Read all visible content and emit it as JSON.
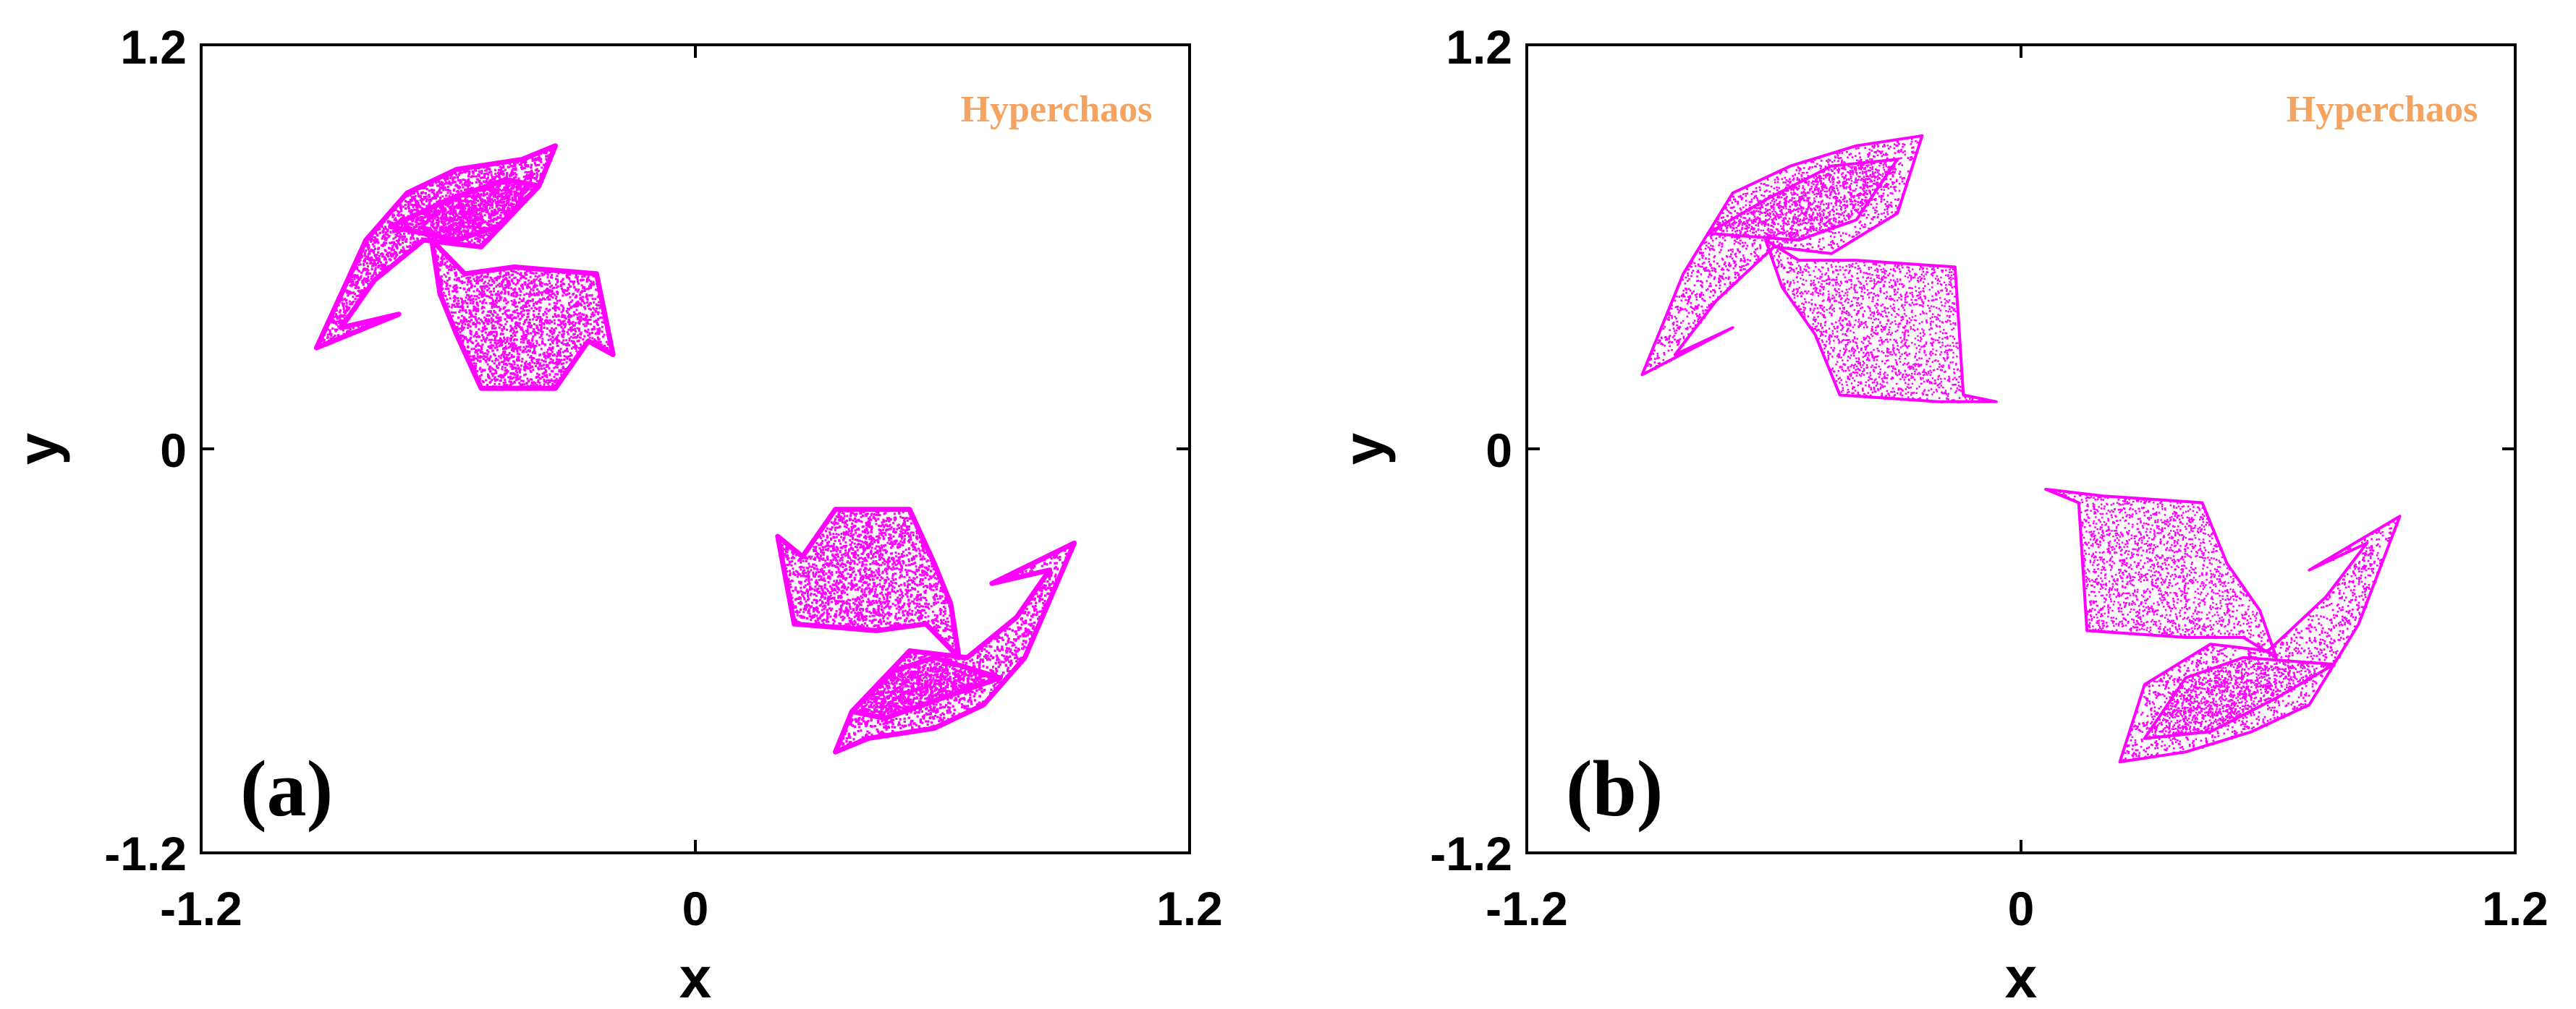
{
  "chart_data": [
    {
      "type": "scatter",
      "panel_label": "(a)",
      "annotation": "Hyperchaos",
      "annotation_color": "#f4a460",
      "point_color": "#ff00ff",
      "xlabel": "x",
      "ylabel": "y",
      "xlim": [
        -1.2,
        1.2
      ],
      "ylim": [
        -1.2,
        1.2
      ],
      "xticks": [
        "-1.2",
        "0",
        "1.2"
      ],
      "yticks": [
        "-1.2",
        "0",
        "1.2"
      ],
      "grid": false,
      "attractor_regions": [
        {
          "name": "upper-left",
          "polygons": [
            [
              [
                -0.92,
                0.3
              ],
              [
                -0.8,
                0.62
              ],
              [
                -0.7,
                0.76
              ],
              [
                -0.58,
                0.83
              ],
              [
                -0.42,
                0.86
              ],
              [
                -0.34,
                0.9
              ],
              [
                -0.38,
                0.78
              ],
              [
                -0.52,
                0.6
              ],
              [
                -0.66,
                0.62
              ],
              [
                -0.78,
                0.5
              ],
              [
                -0.86,
                0.36
              ],
              [
                -0.72,
                0.4
              ]
            ],
            [
              [
                -0.64,
                0.62
              ],
              [
                -0.56,
                0.52
              ],
              [
                -0.44,
                0.54
              ],
              [
                -0.24,
                0.52
              ],
              [
                -0.2,
                0.28
              ],
              [
                -0.26,
                0.32
              ],
              [
                -0.34,
                0.18
              ],
              [
                -0.52,
                0.18
              ],
              [
                -0.58,
                0.34
              ],
              [
                -0.62,
                0.46
              ]
            ],
            [
              [
                -0.74,
                0.66
              ],
              [
                -0.6,
                0.74
              ],
              [
                -0.46,
                0.8
              ],
              [
                -0.38,
                0.78
              ],
              [
                -0.48,
                0.66
              ],
              [
                -0.58,
                0.62
              ]
            ]
          ]
        },
        {
          "name": "lower-right",
          "polygons": [
            [
              [
                0.92,
                -0.28
              ],
              [
                0.8,
                -0.62
              ],
              [
                0.7,
                -0.76
              ],
              [
                0.58,
                -0.83
              ],
              [
                0.42,
                -0.86
              ],
              [
                0.34,
                -0.9
              ],
              [
                0.38,
                -0.78
              ],
              [
                0.52,
                -0.6
              ],
              [
                0.66,
                -0.62
              ],
              [
                0.78,
                -0.5
              ],
              [
                0.86,
                -0.36
              ],
              [
                0.72,
                -0.4
              ]
            ],
            [
              [
                0.64,
                -0.62
              ],
              [
                0.56,
                -0.52
              ],
              [
                0.44,
                -0.54
              ],
              [
                0.24,
                -0.52
              ],
              [
                0.2,
                -0.26
              ],
              [
                0.26,
                -0.32
              ],
              [
                0.34,
                -0.18
              ],
              [
                0.52,
                -0.18
              ],
              [
                0.58,
                -0.34
              ],
              [
                0.62,
                -0.46
              ]
            ],
            [
              [
                0.74,
                -0.68
              ],
              [
                0.6,
                -0.74
              ],
              [
                0.46,
                -0.8
              ],
              [
                0.38,
                -0.78
              ],
              [
                0.48,
                -0.66
              ],
              [
                0.58,
                -0.62
              ]
            ]
          ]
        }
      ]
    },
    {
      "type": "scatter",
      "panel_label": "(b)",
      "annotation": "Hyperchaos",
      "annotation_color": "#f4a460",
      "point_color": "#ff00ff",
      "xlabel": "x",
      "ylabel": "y",
      "xlim": [
        -1.2,
        1.2
      ],
      "ylim": [
        -1.2,
        1.2
      ],
      "xticks": [
        "-1.2",
        "0",
        "1.2"
      ],
      "yticks": [
        "-1.2",
        "0",
        "1.2"
      ],
      "grid": false,
      "attractor_regions": [
        {
          "name": "upper-left",
          "polygons": [
            [
              [
                -0.92,
                0.22
              ],
              [
                -0.82,
                0.52
              ],
              [
                -0.7,
                0.76
              ],
              [
                -0.56,
                0.84
              ],
              [
                -0.4,
                0.9
              ],
              [
                -0.24,
                0.93
              ],
              [
                -0.3,
                0.7
              ],
              [
                -0.46,
                0.58
              ],
              [
                -0.6,
                0.6
              ],
              [
                -0.74,
                0.44
              ],
              [
                -0.84,
                0.28
              ],
              [
                -0.7,
                0.36
              ]
            ],
            [
              [
                -0.62,
                0.62
              ],
              [
                -0.54,
                0.56
              ],
              [
                -0.4,
                0.56
              ],
              [
                -0.16,
                0.54
              ],
              [
                -0.14,
                0.16
              ],
              [
                -0.06,
                0.14
              ],
              [
                -0.2,
                0.14
              ],
              [
                -0.44,
                0.16
              ],
              [
                -0.5,
                0.34
              ],
              [
                -0.58,
                0.48
              ]
            ],
            [
              [
                -0.76,
                0.64
              ],
              [
                -0.62,
                0.74
              ],
              [
                -0.46,
                0.84
              ],
              [
                -0.3,
                0.86
              ],
              [
                -0.4,
                0.68
              ],
              [
                -0.54,
                0.62
              ]
            ]
          ]
        },
        {
          "name": "lower-right",
          "polygons": [
            [
              [
                0.92,
                -0.2
              ],
              [
                0.82,
                -0.52
              ],
              [
                0.7,
                -0.76
              ],
              [
                0.56,
                -0.84
              ],
              [
                0.4,
                -0.9
              ],
              [
                0.24,
                -0.93
              ],
              [
                0.3,
                -0.7
              ],
              [
                0.46,
                -0.58
              ],
              [
                0.6,
                -0.6
              ],
              [
                0.74,
                -0.44
              ],
              [
                0.84,
                -0.28
              ],
              [
                0.7,
                -0.36
              ]
            ],
            [
              [
                0.62,
                -0.62
              ],
              [
                0.54,
                -0.56
              ],
              [
                0.4,
                -0.56
              ],
              [
                0.16,
                -0.54
              ],
              [
                0.14,
                -0.16
              ],
              [
                0.06,
                -0.12
              ],
              [
                0.2,
                -0.14
              ],
              [
                0.44,
                -0.16
              ],
              [
                0.5,
                -0.34
              ],
              [
                0.58,
                -0.48
              ]
            ],
            [
              [
                0.76,
                -0.64
              ],
              [
                0.62,
                -0.74
              ],
              [
                0.46,
                -0.84
              ],
              [
                0.3,
                -0.86
              ],
              [
                0.4,
                -0.68
              ],
              [
                0.54,
                -0.62
              ]
            ]
          ]
        }
      ]
    }
  ]
}
